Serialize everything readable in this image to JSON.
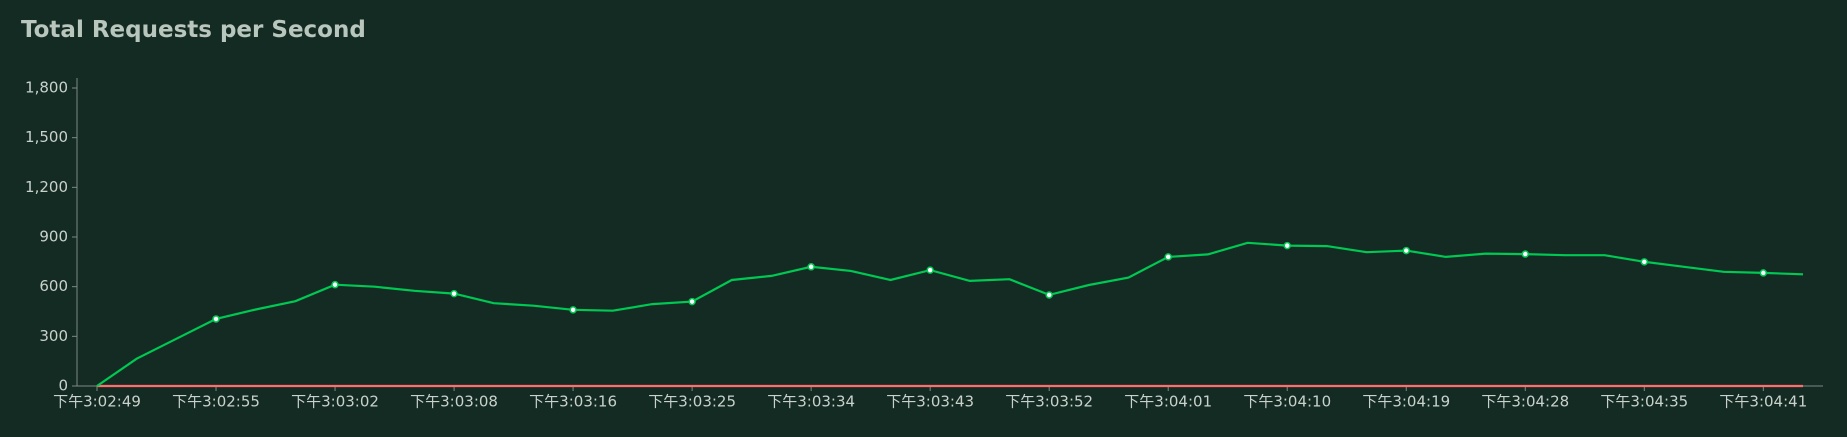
{
  "chart_data": {
    "type": "line",
    "title": "Total Requests per Second",
    "categories": [
      "下午3:02:49",
      null,
      null,
      "下午3:02:55",
      null,
      null,
      "下午3:03:02",
      null,
      null,
      "下午3:03:08",
      null,
      null,
      "下午3:03:16",
      null,
      null,
      "下午3:03:25",
      null,
      null,
      "下午3:03:34",
      null,
      null,
      "下午3:03:43",
      null,
      null,
      "下午3:03:52",
      null,
      null,
      "下午3:04:01",
      null,
      null,
      "下午3:04:10",
      null,
      null,
      "下午3:04:19",
      null,
      null,
      "下午3:04:28",
      null,
      null,
      "下午3:04:35",
      null,
      null,
      "下午3:04:41",
      null
    ],
    "series": [
      {
        "color": "#00c853",
        "values": [
          0,
          165,
          285,
          405,
          462,
          512,
          612,
          600,
          575,
          558,
          500,
          485,
          460,
          455,
          495,
          510,
          640,
          665,
          720,
          695,
          640,
          700,
          635,
          645,
          550,
          610,
          655,
          780,
          795,
          865,
          848,
          845,
          808,
          818,
          780,
          800,
          797,
          790,
          790,
          750,
          720,
          690,
          683,
          675
        ]
      },
      {
        "color": "#ff6d6d",
        "values": [
          0,
          0,
          0,
          0,
          0,
          0,
          0,
          0,
          0,
          0,
          0,
          0,
          0,
          0,
          0,
          0,
          0,
          0,
          0,
          0,
          0,
          0,
          0,
          0,
          0,
          0,
          0,
          0,
          0,
          0,
          0,
          0,
          0,
          0,
          0,
          0,
          0,
          0,
          0,
          0,
          0,
          0,
          0,
          0
        ]
      }
    ],
    "ylim": [
      0,
      1800
    ],
    "yticks": [
      0,
      300,
      600,
      900,
      {
        "value": 1200,
        "label": "1,200"
      },
      {
        "value": 1500,
        "label": "1,500"
      },
      {
        "value": 1800,
        "label": "1,800"
      }
    ],
    "grid": false
  }
}
